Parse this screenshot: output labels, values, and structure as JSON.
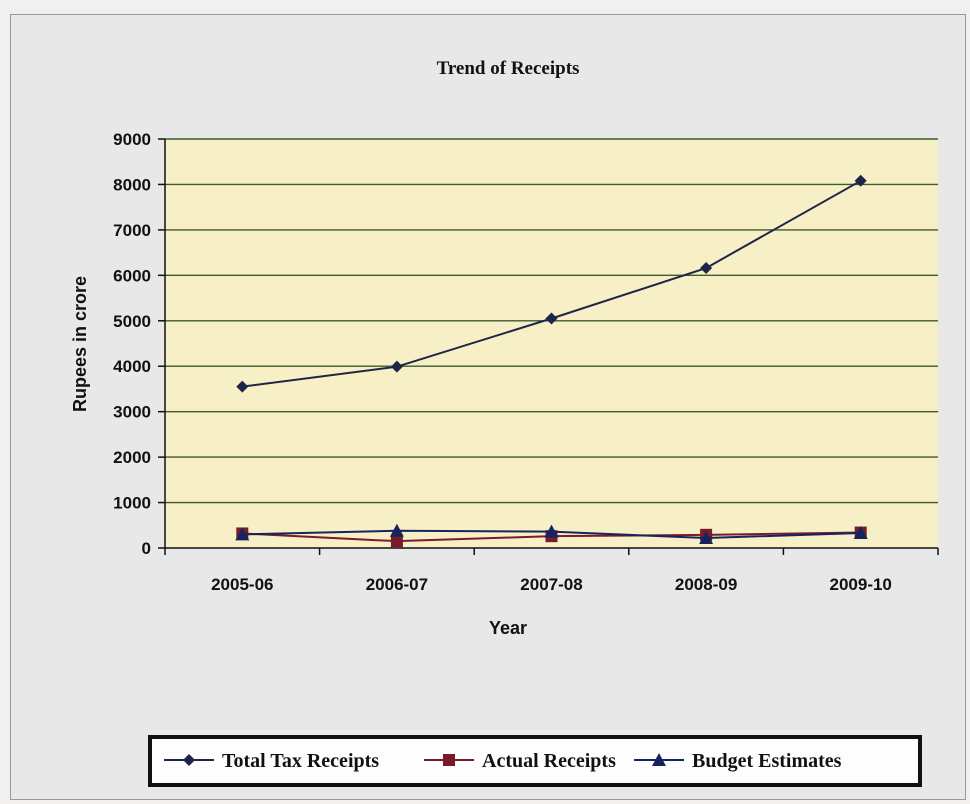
{
  "chart_data": {
    "type": "line",
    "title": "Trend of Receipts",
    "xlabel": "Year",
    "ylabel": "Rupees in crore",
    "categories": [
      "2005-06",
      "2006-07",
      "2007-08",
      "2008-09",
      "2009-10"
    ],
    "ylim": [
      0,
      9000
    ],
    "yticks": [
      0,
      1000,
      2000,
      3000,
      4000,
      5000,
      6000,
      7000,
      8000,
      9000
    ],
    "grid": true,
    "legend_position": "bottom",
    "plot_background": "#f7f0c6",
    "gridline_color": "#3c5a2c",
    "series": [
      {
        "name": "Total Tax Receipts",
        "values": [
          3550,
          3990,
          5050,
          6160,
          8080
        ],
        "color": "#1f2547",
        "marker": "diamond"
      },
      {
        "name": "Actual Receipts",
        "values": [
          320,
          150,
          260,
          290,
          340
        ],
        "color": "#7a1a2a",
        "marker": "square"
      },
      {
        "name": "Budget Estimates",
        "values": [
          300,
          380,
          360,
          220,
          330
        ],
        "color": "#15245e",
        "marker": "triangle"
      }
    ]
  }
}
